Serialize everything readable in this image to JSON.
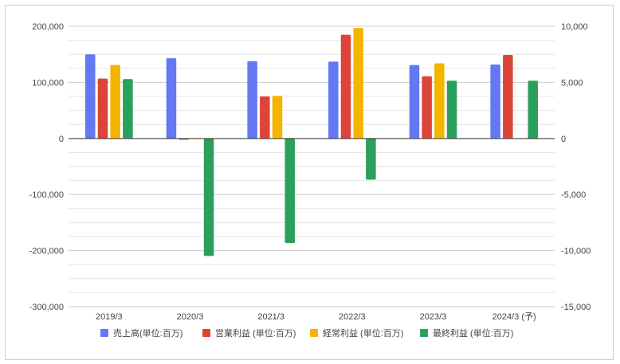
{
  "chart_data": {
    "type": "bar",
    "categories": [
      "2019/3",
      "2020/3",
      "2021/3",
      "2022/3",
      "2023/3",
      "2024/3 (予)"
    ],
    "series": [
      {
        "name": "売上高(単位:百万)",
        "axis": "left",
        "color": "#6378f2",
        "values": [
          150000,
          143000,
          138000,
          137000,
          131000,
          132000
        ]
      },
      {
        "name": "営業利益 (単位:百万)",
        "axis": "right",
        "color": "#db4437",
        "values": [
          5350,
          -100,
          3750,
          9250,
          5550,
          7450
        ]
      },
      {
        "name": "経常利益 (単位:百万)",
        "axis": "right",
        "color": "#f4b400",
        "values": [
          6550,
          50,
          3800,
          9850,
          6700,
          null
        ]
      },
      {
        "name": "最終利益 (単位:百万)",
        "axis": "right",
        "color": "#2aa05a",
        "values": [
          5300,
          -10450,
          -9300,
          -3650,
          5150,
          5150
        ]
      }
    ],
    "y_left": {
      "ylim": [
        -300000,
        200000
      ],
      "ticks": [
        "200,000",
        "100,000",
        "0",
        "-100,000",
        "-200,000",
        "-300,000"
      ]
    },
    "y_right": {
      "ylim": [
        -15000,
        10000
      ],
      "ticks": [
        "10,000",
        "5,000",
        "0",
        "-5,000",
        "-10,000",
        "-15,000"
      ]
    },
    "grid": true,
    "legend_position": "bottom"
  }
}
